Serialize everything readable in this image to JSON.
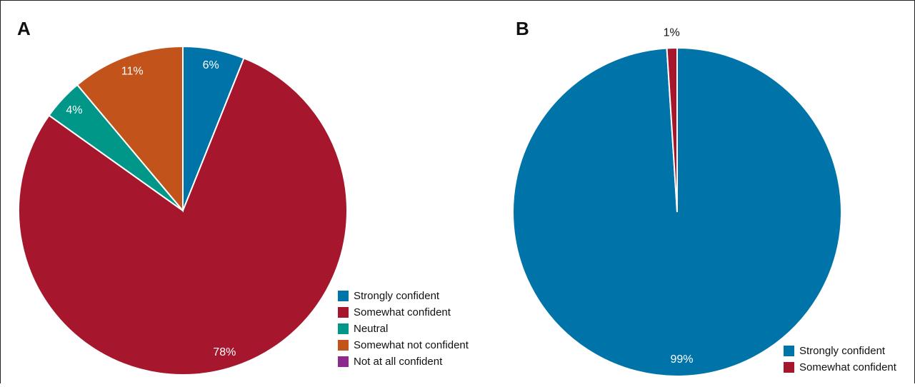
{
  "chart_data": [
    {
      "type": "pie",
      "panel": "A",
      "categories": [
        "Strongly confident",
        "Somewhat confident",
        "Neutral",
        "Somewhat not confident",
        "Not at all confident"
      ],
      "values": [
        6,
        78,
        4,
        11,
        0
      ],
      "value_labels": [
        "6%",
        "78%",
        "4%",
        "11%",
        null
      ],
      "colors": [
        "#0074a8",
        "#a6162c",
        "#009688",
        "#c1531b",
        "#8e2a8e"
      ],
      "legend": "lower right"
    },
    {
      "type": "pie",
      "panel": "B",
      "categories": [
        "Strongly confident",
        "Somewhat confident"
      ],
      "values": [
        99,
        1
      ],
      "value_labels": [
        "99%",
        "1%"
      ],
      "colors": [
        "#0074a8",
        "#a6162c"
      ],
      "legend": "lower right"
    }
  ]
}
